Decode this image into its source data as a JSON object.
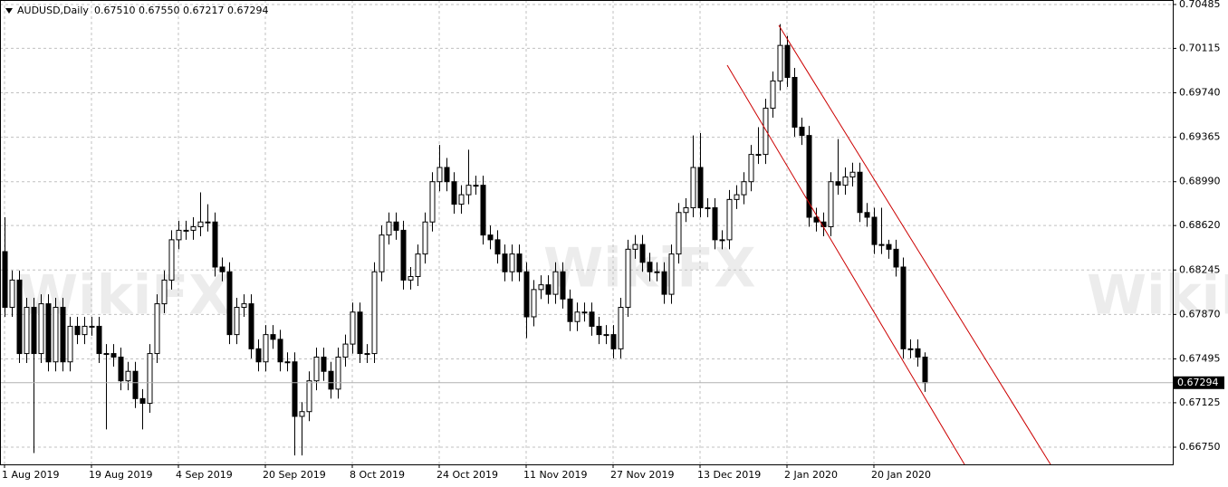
{
  "chart_data": {
    "type": "candlestick",
    "title": "AUDUSD,Daily",
    "ohlc_text": "0.67510 0.67550 0.67217 0.67294",
    "watermark": "WikiFX",
    "categories": [
      "1 Aug 2019",
      null,
      null,
      null,
      null,
      null,
      null,
      null,
      null,
      null,
      null,
      null,
      "19 Aug 2019",
      null,
      null,
      null,
      null,
      null,
      null,
      null,
      null,
      null,
      null,
      null,
      "4 Sep 2019",
      null,
      null,
      null,
      null,
      null,
      null,
      null,
      null,
      null,
      null,
      null,
      "20 Sep 2019",
      null,
      null,
      null,
      null,
      null,
      null,
      null,
      null,
      null,
      null,
      null,
      "8 Oct 2019",
      null,
      null,
      null,
      null,
      null,
      null,
      null,
      null,
      null,
      null,
      null,
      "24 Oct 2019",
      null,
      null,
      null,
      null,
      null,
      null,
      null,
      null,
      null,
      null,
      null,
      "11 Nov 2019",
      null,
      null,
      null,
      null,
      null,
      null,
      null,
      null,
      null,
      null,
      null,
      "27 Nov 2019",
      null,
      null,
      null,
      null,
      null,
      null,
      null,
      null,
      null,
      null,
      null,
      "13 Dec 2019",
      null,
      null,
      null,
      null,
      null,
      null,
      null,
      null,
      null,
      null,
      null,
      "2 Jan 2020",
      null,
      null,
      null,
      null,
      null,
      null,
      null,
      null,
      null,
      null,
      null,
      "20 Jan 2020",
      null,
      null,
      null,
      null,
      null,
      null,
      null
    ],
    "open": [
      0.684,
      0.6793,
      0.6816,
      0.6754,
      0.6793,
      0.6754,
      0.6796,
      0.6747,
      0.6793,
      0.6747,
      0.6777,
      0.677,
      0.6777,
      0.6777,
      0.6754,
      0.6754,
      0.6751,
      0.6731,
      0.6739,
      0.6716,
      0.6712,
      0.6754,
      0.6796,
      0.6816,
      0.685,
      0.6858,
      0.6858,
      0.6861,
      0.6865,
      0.6865,
      0.6827,
      0.6823,
      0.677,
      0.6793,
      0.6796,
      0.6758,
      0.6747,
      0.677,
      0.6766,
      0.6747,
      0.6747,
      0.6701,
      0.6705,
      0.6731,
      0.6751,
      0.6739,
      0.6724,
      0.6751,
      0.6762,
      0.6789,
      0.6754,
      0.6754,
      0.6823,
      0.6854,
      0.6865,
      0.6858,
      0.6816,
      0.6819,
      0.6838,
      0.6865,
      0.6899,
      0.6911,
      0.6899,
      0.688,
      0.6888,
      0.6896,
      0.6896,
      0.6854,
      0.685,
      0.6838,
      0.6823,
      0.6838,
      0.6823,
      0.6785,
      0.6808,
      0.6812,
      0.6804,
      0.6823,
      0.68,
      0.6781,
      0.6789,
      0.6789,
      0.6777,
      0.677,
      0.677,
      0.6758,
      0.6793,
      0.6842,
      0.6846,
      0.6831,
      0.6823,
      0.6823,
      0.6804,
      0.6838,
      0.6873,
      0.6877,
      0.6911,
      0.6877,
      0.6877,
      0.685,
      0.685,
      0.6884,
      0.6888,
      0.6899,
      0.6922,
      0.6922,
      0.6961,
      0.6984,
      0.7014,
      0.6987,
      0.6945,
      0.6938,
      0.6869,
      0.6865,
      0.6861,
      0.6899,
      0.6896,
      0.6903,
      0.6907,
      0.6873,
      0.6869,
      0.6846,
      0.6846,
      0.6842,
      0.6827,
      0.6758,
      0.6758,
      0.6751
    ],
    "high": [
      0.6869,
      0.6824,
      0.6824,
      0.6801,
      0.6801,
      0.6804,
      0.6804,
      0.6801,
      0.6801,
      0.6785,
      0.6785,
      0.6785,
      0.6785,
      0.6785,
      0.6762,
      0.6762,
      0.6759,
      0.6747,
      0.6747,
      0.6724,
      0.6762,
      0.6804,
      0.6824,
      0.6858,
      0.6866,
      0.6866,
      0.6869,
      0.689,
      0.688,
      0.6873,
      0.6835,
      0.6831,
      0.6801,
      0.6804,
      0.6804,
      0.6766,
      0.6778,
      0.6778,
      0.6774,
      0.6755,
      0.6755,
      0.6713,
      0.6739,
      0.6759,
      0.6759,
      0.6747,
      0.6759,
      0.677,
      0.6797,
      0.6797,
      0.6762,
      0.6831,
      0.6862,
      0.6873,
      0.6873,
      0.6866,
      0.6827,
      0.6846,
      0.6873,
      0.6907,
      0.693,
      0.6919,
      0.6907,
      0.6896,
      0.6926,
      0.6904,
      0.6904,
      0.6862,
      0.6858,
      0.6846,
      0.6846,
      0.6846,
      0.6831,
      0.6816,
      0.682,
      0.682,
      0.6831,
      0.6831,
      0.6808,
      0.6797,
      0.6797,
      0.6797,
      0.6785,
      0.6778,
      0.6778,
      0.6801,
      0.685,
      0.6854,
      0.6854,
      0.6839,
      0.6831,
      0.6831,
      0.6846,
      0.6881,
      0.6885,
      0.6938,
      0.694,
      0.6885,
      0.6885,
      0.6858,
      0.6892,
      0.6896,
      0.6907,
      0.693,
      0.6945,
      0.6969,
      0.6992,
      0.7032,
      0.7022,
      0.6995,
      0.6953,
      0.6946,
      0.6877,
      0.6873,
      0.6907,
      0.6935,
      0.6911,
      0.6915,
      0.6915,
      0.6881,
      0.6877,
      0.6877,
      0.685,
      0.685,
      0.6835,
      0.6766,
      0.6766,
      0.6755
    ],
    "low": [
      0.6785,
      0.6785,
      0.6746,
      0.6746,
      0.667,
      0.6746,
      0.6739,
      0.6739,
      0.6739,
      0.6739,
      0.6762,
      0.6762,
      0.6769,
      0.6746,
      0.669,
      0.6743,
      0.6723,
      0.6723,
      0.6708,
      0.669,
      0.6704,
      0.6746,
      0.6788,
      0.6808,
      0.6842,
      0.685,
      0.685,
      0.6853,
      0.6857,
      0.6819,
      0.6815,
      0.6762,
      0.6762,
      0.6785,
      0.675,
      0.6739,
      0.6739,
      0.6758,
      0.6739,
      0.6739,
      0.6668,
      0.6668,
      0.6697,
      0.6723,
      0.6731,
      0.6716,
      0.6716,
      0.6743,
      0.6754,
      0.6746,
      0.6746,
      0.6746,
      0.6815,
      0.6846,
      0.685,
      0.6808,
      0.6808,
      0.6811,
      0.683,
      0.6857,
      0.6891,
      0.6891,
      0.6872,
      0.6872,
      0.688,
      0.6888,
      0.6846,
      0.6842,
      0.683,
      0.6815,
      0.6815,
      0.6815,
      0.6767,
      0.6777,
      0.68,
      0.6796,
      0.6796,
      0.6792,
      0.6773,
      0.6773,
      0.6781,
      0.6769,
      0.6762,
      0.6762,
      0.675,
      0.675,
      0.6785,
      0.6834,
      0.6823,
      0.6815,
      0.6815,
      0.6796,
      0.6796,
      0.683,
      0.6865,
      0.6869,
      0.6869,
      0.6869,
      0.6842,
      0.6842,
      0.6842,
      0.6876,
      0.688,
      0.6891,
      0.6914,
      0.6914,
      0.6953,
      0.6976,
      0.6979,
      0.6937,
      0.693,
      0.6861,
      0.6857,
      0.6853,
      0.6853,
      0.6888,
      0.6888,
      0.6895,
      0.6865,
      0.6861,
      0.6838,
      0.6838,
      0.6834,
      0.6819,
      0.675,
      0.675,
      0.6743,
      0.67217
    ],
    "close": [
      0.6793,
      0.6816,
      0.6754,
      0.6793,
      0.6754,
      0.6796,
      0.6747,
      0.6793,
      0.6747,
      0.6777,
      0.677,
      0.6777,
      0.6777,
      0.6754,
      0.6754,
      0.6751,
      0.6731,
      0.6739,
      0.6716,
      0.6712,
      0.6754,
      0.6796,
      0.6816,
      0.685,
      0.6858,
      0.6858,
      0.6861,
      0.6865,
      0.6865,
      0.6827,
      0.6823,
      0.677,
      0.6793,
      0.6796,
      0.6758,
      0.6747,
      0.677,
      0.6766,
      0.6747,
      0.6747,
      0.6701,
      0.6705,
      0.6731,
      0.6751,
      0.6739,
      0.6724,
      0.6751,
      0.6762,
      0.6789,
      0.6754,
      0.6754,
      0.6823,
      0.6854,
      0.6865,
      0.6858,
      0.6816,
      0.6819,
      0.6838,
      0.6865,
      0.6899,
      0.6911,
      0.6899,
      0.688,
      0.6888,
      0.6896,
      0.6896,
      0.6854,
      0.685,
      0.6838,
      0.6823,
      0.6838,
      0.6823,
      0.6785,
      0.6808,
      0.6812,
      0.6804,
      0.6823,
      0.68,
      0.6781,
      0.6789,
      0.6789,
      0.6777,
      0.677,
      0.677,
      0.6758,
      0.6793,
      0.6842,
      0.6846,
      0.6831,
      0.6823,
      0.6823,
      0.6804,
      0.6838,
      0.6873,
      0.6877,
      0.6911,
      0.6877,
      0.6877,
      0.685,
      0.685,
      0.6884,
      0.6888,
      0.6899,
      0.6922,
      0.6922,
      0.6961,
      0.6984,
      0.7014,
      0.6987,
      0.6945,
      0.6938,
      0.6869,
      0.6865,
      0.6861,
      0.6899,
      0.6896,
      0.6903,
      0.6907,
      0.6873,
      0.6869,
      0.6846,
      0.6846,
      0.6842,
      0.6827,
      0.6758,
      0.6758,
      0.6751,
      0.67294
    ],
    "ylim": [
      0.66605,
      0.70523
    ],
    "yticks": [
      0.70485,
      0.70115,
      {
        "value": 0.6974,
        "label": "0.69740"
      },
      0.69365,
      {
        "value": 0.6899,
        "label": "0.68990"
      },
      {
        "value": 0.6862,
        "label": "0.68620"
      },
      0.68245,
      {
        "value": 0.6787,
        "label": "0.67870"
      },
      0.67495,
      0.67125,
      {
        "value": 0.6675,
        "label": "0.66750"
      }
    ],
    "grid": true,
    "up_color": "#ffffff",
    "down_color": "#000000",
    "channel_color": "#cc0000"
  }
}
